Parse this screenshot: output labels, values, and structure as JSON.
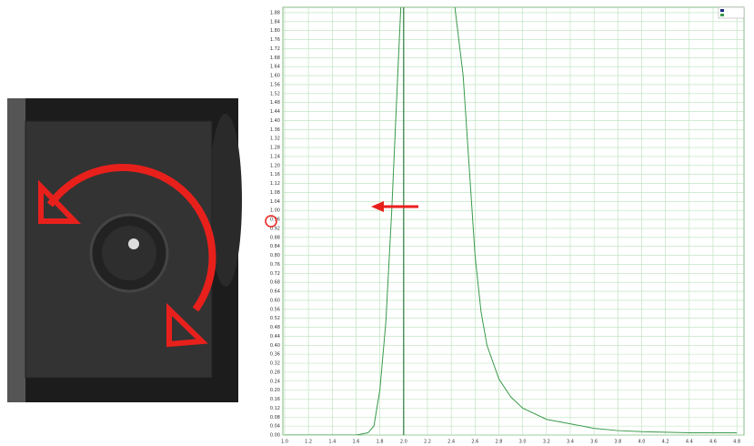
{
  "chart_data": {
    "type": "line",
    "x": [
      1.0,
      1.6,
      1.7,
      1.75,
      1.8,
      1.85,
      1.9,
      1.95,
      1.98,
      2.42,
      2.5,
      2.55,
      2.6,
      2.65,
      2.7,
      2.8,
      2.9,
      3.0,
      3.2,
      3.4,
      3.6,
      3.8,
      4.0,
      4.4,
      4.8
    ],
    "series": [
      {
        "color": "#3a9a4a",
        "values": [
          0,
          0,
          0.01,
          0.04,
          0.2,
          0.5,
          1.0,
          1.6,
          1.95,
          1.95,
          1.6,
          1.2,
          0.8,
          0.55,
          0.4,
          0.25,
          0.17,
          0.12,
          0.07,
          0.05,
          0.03,
          0.02,
          0.015,
          0.01,
          0.01
        ]
      }
    ],
    "vline": 2.0,
    "xlim": [
      0.985,
      4.86
    ],
    "ylim": [
      0,
      1.9
    ],
    "xticks": [
      {
        "value": 1.0,
        "label": "1.0"
      },
      1.2,
      1.4,
      1.6,
      1.8,
      {
        "value": 2.0,
        "label": "2.0"
      },
      2.2,
      2.4,
      2.6,
      2.8,
      {
        "value": 3.0,
        "label": "3.0"
      },
      3.2,
      3.4,
      3.6,
      3.8,
      {
        "value": 4.0,
        "label": "4.0"
      },
      4.2,
      4.4,
      4.6,
      4.8
    ],
    "yticks": [
      {
        "value": 0,
        "label": "0.00"
      },
      0.04,
      0.08,
      0.12,
      0.16,
      {
        "value": 0.2,
        "label": "0.20"
      },
      0.24,
      0.28,
      0.32,
      0.36,
      {
        "value": 0.4,
        "label": "0.40"
      },
      0.44,
      0.48,
      0.52,
      0.56,
      {
        "value": 0.6,
        "label": "0.60"
      },
      0.64,
      0.68,
      0.72,
      0.76,
      {
        "value": 0.8,
        "label": "0.80"
      },
      0.84,
      0.88,
      0.92,
      0.96,
      {
        "value": 1.0,
        "label": "1.00"
      },
      1.04,
      1.08,
      1.12,
      1.16,
      {
        "value": 1.2,
        "label": "1.20"
      },
      1.24,
      1.28,
      1.32,
      1.36,
      {
        "value": 1.4,
        "label": "1.40"
      },
      1.44,
      1.48,
      1.52,
      1.56,
      {
        "value": 1.6,
        "label": "1.60"
      },
      1.64,
      1.68,
      1.72,
      1.76,
      {
        "value": 1.8,
        "label": "1.80"
      },
      1.84,
      1.88
    ],
    "grid": true
  }
}
